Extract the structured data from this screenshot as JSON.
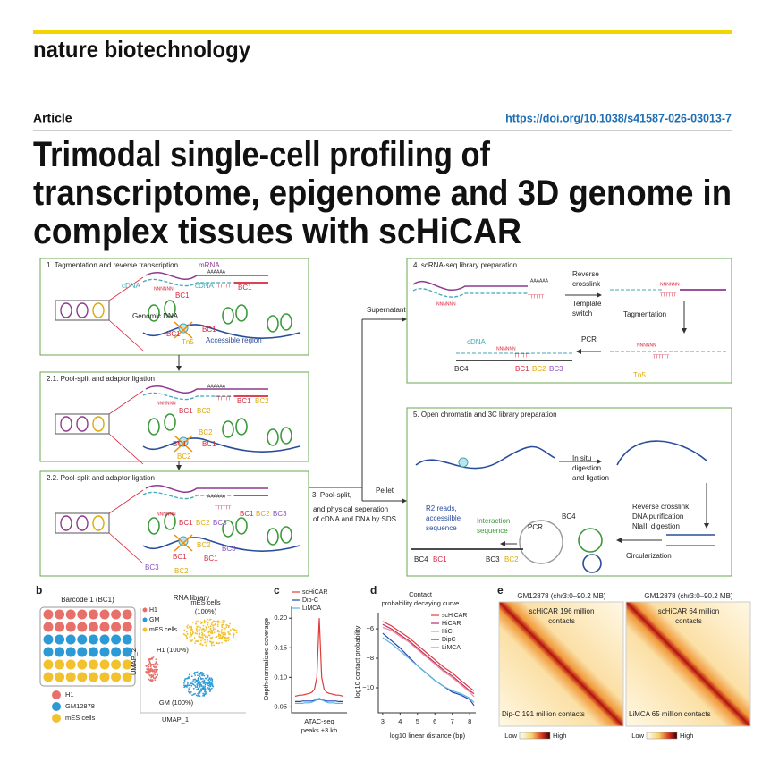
{
  "header": {
    "journal": "nature biotechnology",
    "article_type": "Article",
    "doi": "https://doi.org/10.1038/s41587-026-03013-7",
    "title": [
      "Trimodal single-cell profiling of",
      "transcriptome, epigenome and 3D genome in",
      "complex tissues with scHiCAR"
    ]
  },
  "figure": {
    "panel_a": {
      "steps": [
        {
          "title": "1. Tagmentation and reverse transcription",
          "labels": [
            "mRNA",
            "AAAAAA",
            "cDNA",
            "NNNNNN",
            "cDNA",
            "TTTTTT",
            "BC1",
            "BC1",
            "Genomic DNA",
            "BC1",
            "BC1",
            "Tn5",
            "Accessible region"
          ]
        },
        {
          "title": "2.1. Pool-split and adaptor ligation",
          "labels": [
            "AAAAAA",
            "TTTTTT",
            "NNNNNN",
            "BC1",
            "BC2",
            "BC1",
            "BC2",
            "BC2",
            "BC1",
            "BC1",
            "BC2"
          ]
        },
        {
          "title": "2.2. Pool-split and adaptor ligation",
          "labels": [
            "AAAAAA",
            "TTTTTT",
            "NNNNNN",
            "BC1",
            "BC2",
            "BC3",
            "BC1",
            "BC2",
            "BC3",
            "BC2",
            "BC3",
            "BC1",
            "BC1",
            "BC3",
            "BC2"
          ]
        },
        {
          "title": "4. scRNA-seq library preparation",
          "labels": [
            "AAAAAA",
            "TTTTTT",
            "NNNNNN",
            [
              "Reverse",
              "crosslink"
            ],
            [
              "Template",
              "switch"
            ],
            "NNNNNN",
            "TTTTTT",
            "Tagmentation",
            "PCR",
            "NNNNNN",
            "TTTTTT",
            "Tn5",
            "cDNA",
            "NNNNNN",
            "TTTTTT",
            "BC4",
            "BC1",
            "BC2",
            "BC3"
          ]
        },
        {
          "title": "5. Open chromatin and 3C library preparation",
          "labels": [
            [
              "In situ",
              "digestion",
              "and ligation"
            ],
            [
              "Reverse crosslink",
              "DNA purification",
              "NlaIII digestion"
            ],
            "Circularization",
            "PCR",
            "BC4",
            [
              "R2 reads,",
              "accessilble",
              "sequence"
            ],
            [
              "Interaction",
              "sequence"
            ],
            "BC4",
            "BC1",
            "BC3",
            "BC2"
          ]
        }
      ],
      "flow": {
        "step3": "3. Pool-split,",
        "step3_detail": [
          "and physical seperation",
          "of cDNA and DNA by SDS."
        ],
        "supernatant": "Supernatant",
        "pellet": "Pellet"
      }
    },
    "panel_b": {
      "label": "b",
      "plate_title": "Barcode 1 (BC1)",
      "plate_legend": [
        "H1",
        "GM12878",
        "mES cells"
      ],
      "colors": [
        "#e8706a",
        "#2c9ad6",
        "#f2c12e"
      ],
      "umap_title": "RNA library",
      "umap_legend": [
        "H1",
        "GM",
        "mES cells"
      ],
      "cluster_labels": [
        [
          "mES cells",
          "(100%)"
        ],
        "H1 (100%)",
        "GM (100%)"
      ],
      "xlabel": "UMAP_1",
      "ylabel": "UMAP_2"
    },
    "panel_e": {
      "label": "e",
      "maps": [
        {
          "title": "GM12878 (chr3:0–90.2 MB)",
          "upper": [
            "scHiCAR 196 million",
            "contacts"
          ],
          "lower": "Dip-C 191 million contacts"
        },
        {
          "title": "GM12878 (chr3:0–90.2 MB)",
          "upper": [
            "scHiCAR 64 million",
            "contacts"
          ],
          "lower": "LiMCA 65 million contacts"
        }
      ],
      "colorbar": {
        "low": "Low",
        "high": "High"
      }
    }
  },
  "chart_data": [
    {
      "type": "line",
      "label": "c",
      "ylabel": "Depth-normalized coverage",
      "xlabel": [
        "ATAC-seq",
        "peaks ±3 kb"
      ],
      "ylim": [
        0.04,
        0.22
      ],
      "yticks": [
        0.05,
        {
          "value": 0.1,
          "label": "0.10"
        },
        0.15,
        {
          "value": 0.2,
          "label": "0.20"
        }
      ],
      "series": [
        {
          "name": "scHiCAR",
          "color": "#e03b3b",
          "values": [
            0.068,
            0.069,
            0.07,
            0.07,
            0.071,
            0.072,
            0.073,
            0.075,
            0.08,
            0.1,
            0.2,
            0.1,
            0.08,
            0.075,
            0.073,
            0.072,
            0.071,
            0.07,
            0.07,
            0.069,
            0.068
          ]
        },
        {
          "name": "Dip-C",
          "color": "#2846a8",
          "values": [
            0.059,
            0.059,
            0.059,
            0.06,
            0.06,
            0.06,
            0.06,
            0.06,
            0.061,
            0.062,
            0.063,
            0.062,
            0.061,
            0.06,
            0.06,
            0.06,
            0.06,
            0.06,
            0.059,
            0.059,
            0.059
          ]
        },
        {
          "name": "LiMCA",
          "color": "#5ab4e6",
          "values": [
            0.056,
            0.056,
            0.056,
            0.056,
            0.057,
            0.057,
            0.057,
            0.058,
            0.06,
            0.062,
            0.065,
            0.062,
            0.06,
            0.058,
            0.057,
            0.057,
            0.057,
            0.056,
            0.056,
            0.056,
            0.056
          ]
        }
      ]
    },
    {
      "type": "line",
      "label": "d",
      "title": [
        "Contact",
        "probability decaying curve"
      ],
      "xlabel": "log10 linear distance (bp)",
      "ylabel": "log10 contact probability",
      "x": [
        3,
        3.5,
        4,
        4.5,
        5,
        5.5,
        6,
        6.5,
        7,
        7.5,
        8,
        8.25
      ],
      "xlim": [
        2.75,
        8.35
      ],
      "xticks": [
        3,
        4,
        5,
        6,
        7,
        8
      ],
      "ylim": [
        -11.7,
        -4.9
      ],
      "yticks": [
        {
          "value": -6,
          "label": "−6"
        },
        {
          "value": -8,
          "label": "−8"
        },
        {
          "value": -10,
          "label": "−10"
        }
      ],
      "series": [
        {
          "name": "scHiCAR",
          "color": "#e03b3b",
          "values": [
            -5.5,
            -5.8,
            -6.2,
            -6.6,
            -7.1,
            -7.6,
            -8.1,
            -8.6,
            -9.0,
            -9.5,
            -10.0,
            -10.2
          ]
        },
        {
          "name": "HiCAR",
          "color": "#b8306e",
          "values": [
            -5.7,
            -6.0,
            -6.4,
            -6.8,
            -7.3,
            -7.8,
            -8.3,
            -8.8,
            -9.2,
            -9.7,
            -10.2,
            -10.4
          ]
        },
        {
          "name": "HiC",
          "color": "#f08a9a",
          "values": [
            -5.9,
            -6.1,
            -6.5,
            -6.9,
            -7.4,
            -7.9,
            -8.4,
            -8.9,
            -9.3,
            -9.8,
            -10.3,
            -10.6
          ]
        },
        {
          "name": "DipC",
          "color": "#2846a8",
          "values": [
            -6.3,
            -6.8,
            -7.3,
            -7.9,
            -8.5,
            -9.0,
            -9.5,
            -9.9,
            -10.3,
            -10.5,
            -10.8,
            -11.2
          ]
        },
        {
          "name": "LiMCA",
          "color": "#5ab4e6",
          "values": [
            -6.6,
            -7.0,
            -7.5,
            -8.0,
            -8.5,
            -9.0,
            -9.5,
            -9.9,
            -10.2,
            -10.4,
            -10.7,
            -11.0
          ]
        }
      ]
    }
  ]
}
